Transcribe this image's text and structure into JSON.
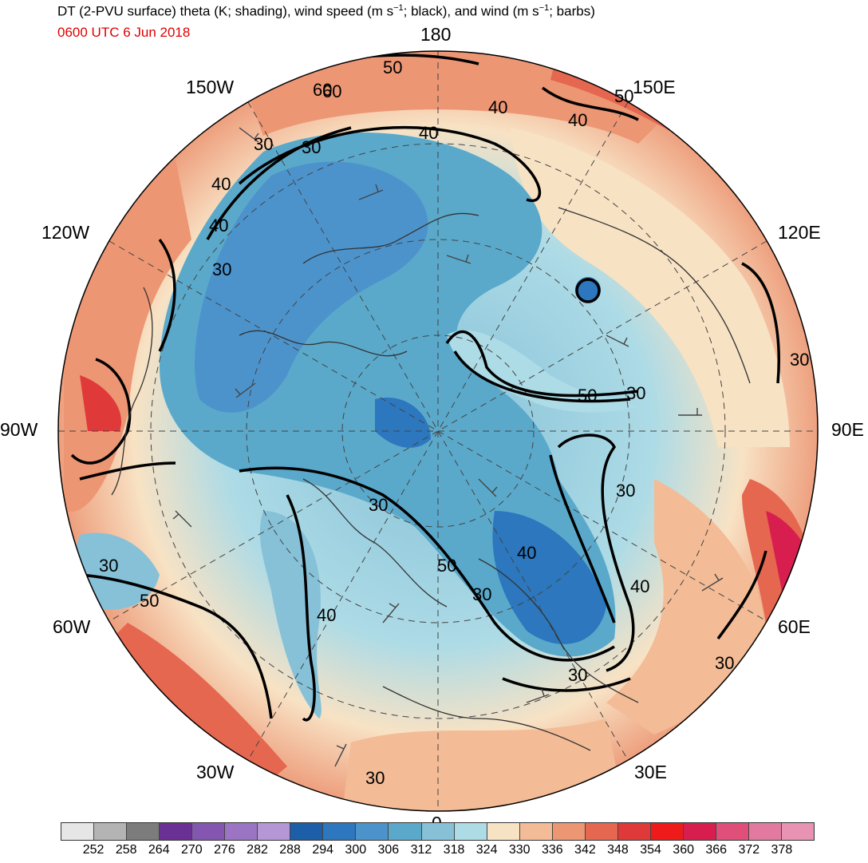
{
  "header": {
    "title_main": "DT (2-PVU surface) theta (K; shading), wind speed (m s",
    "title_sup": "−1",
    "title_mid": "; black), and wind (m s",
    "title_sup2": "−1",
    "title_end": "; barbs)",
    "valid_time": "0600 UTC 6 Jun 2018"
  },
  "map": {
    "projection": "north polar stereographic",
    "longitude_labels": {
      "top": "180",
      "upper_left": "150W",
      "upper_right": "150E",
      "left_upper": "120W",
      "right_upper": "120E",
      "left": "90W",
      "right": "90E",
      "left_lower": "60W",
      "right_lower": "60E",
      "lower_left": "30W",
      "lower_right": "30E",
      "bottom": "0"
    },
    "contour_labels": [
      "50",
      "60",
      "40",
      "50",
      "40",
      "30",
      "30",
      "40",
      "40",
      "30",
      "40",
      "30",
      "50",
      "30",
      "30",
      "30",
      "40",
      "50",
      "30",
      "40",
      "30",
      "50",
      "40",
      "30",
      "30",
      "60",
      "30"
    ]
  },
  "colorbar": {
    "levels": [
      "252",
      "258",
      "264",
      "270",
      "276",
      "282",
      "288",
      "294",
      "300",
      "306",
      "312",
      "318",
      "324",
      "330",
      "336",
      "342",
      "348",
      "354",
      "360",
      "366",
      "372",
      "378"
    ],
    "colors": [
      "#e6e6e6",
      "#b4b4b4",
      "#7c7c7c",
      "#6a3093",
      "#8456b0",
      "#9b74c4",
      "#b597d6",
      "#1c5ea8",
      "#2c77bd",
      "#4c93cc",
      "#5aa9cb",
      "#86c1d8",
      "#addbe6",
      "#f8e2c4",
      "#f3bb96",
      "#ec9674",
      "#e5674f",
      "#e0393a",
      "#ef1b1b",
      "#d81e4e",
      "#df4f79",
      "#e27aa0",
      "#e893b1"
    ]
  }
}
